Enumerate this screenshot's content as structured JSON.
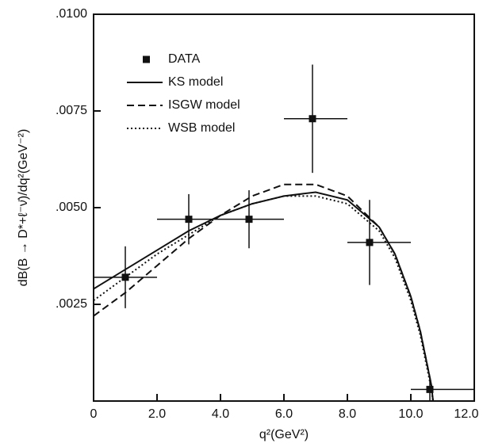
{
  "chart_data": {
    "type": "scatter",
    "x_label": "q²(GeV²)",
    "y_label": "dB(B → D*+ℓ⁻ν̄)/dq²(GeV⁻²)",
    "xlim": [
      0,
      12
    ],
    "ylim": [
      0,
      0.01
    ],
    "xticks": [
      0,
      {
        "value": 2,
        "label": "2.0"
      },
      {
        "value": 4,
        "label": "4.0"
      },
      {
        "value": 6,
        "label": "6.0"
      },
      {
        "value": 8,
        "label": "8.0"
      },
      {
        "value": 10,
        "label": "10.0"
      },
      {
        "value": 12,
        "label": "12.0"
      }
    ],
    "yticks": [
      {
        "value": 0.0025,
        "label": ".0025"
      },
      {
        "value": 0.005,
        "label": ".0050"
      },
      {
        "value": 0.0075,
        "label": ".0075"
      },
      {
        "value": 0.01,
        "label": ".0100"
      }
    ],
    "legend": "upper left",
    "series": [
      {
        "name": "DATA",
        "type": "errorbar",
        "color": "#111111",
        "x": [
          1.0,
          3.0,
          4.9,
          6.9,
          8.7,
          10.6
        ],
        "values": [
          0.0032,
          0.0047,
          0.0047,
          0.0073,
          0.0041,
          0.0003
        ],
        "yerr": [
          0.0008,
          0.00065,
          0.00075,
          0.0014,
          0.0011,
          0.0003
        ],
        "x_low": [
          0,
          2,
          4,
          6,
          8,
          10
        ],
        "x_high": [
          2,
          4,
          6,
          8,
          10,
          12
        ]
      },
      {
        "name": "KS model",
        "type": "line",
        "dash": "solid",
        "color": "#111111",
        "x": [
          0,
          1,
          2,
          3,
          4,
          5,
          6,
          7,
          8,
          9,
          9.5,
          10,
          10.3,
          10.5,
          10.65,
          10.7
        ],
        "values": [
          0.0029,
          0.0034,
          0.0039,
          0.0044,
          0.0048,
          0.0051,
          0.0053,
          0.0054,
          0.0052,
          0.0045,
          0.0038,
          0.0027,
          0.0018,
          0.001,
          0.0004,
          0
        ]
      },
      {
        "name": "ISGW model",
        "type": "line",
        "dash": "dashed",
        "color": "#111111",
        "x": [
          0,
          1,
          2,
          3,
          4,
          5,
          6,
          7,
          8,
          9,
          9.5,
          10,
          10.3,
          10.5,
          10.65,
          10.7
        ],
        "values": [
          0.0022,
          0.0028,
          0.0035,
          0.0042,
          0.0048,
          0.0053,
          0.0056,
          0.0056,
          0.0053,
          0.0045,
          0.0038,
          0.0027,
          0.0018,
          0.001,
          0.0004,
          0
        ]
      },
      {
        "name": "WSB model",
        "type": "line",
        "dash": "dotted",
        "color": "#111111",
        "x": [
          0,
          1,
          2,
          3,
          4,
          5,
          6,
          7,
          8,
          9,
          9.5,
          10,
          10.3,
          10.5,
          10.65,
          10.7
        ],
        "values": [
          0.0026,
          0.0032,
          0.0038,
          0.0043,
          0.0048,
          0.0051,
          0.0053,
          0.0053,
          0.0051,
          0.0044,
          0.0037,
          0.0026,
          0.0017,
          0.0009,
          0.0003,
          0
        ]
      }
    ]
  }
}
